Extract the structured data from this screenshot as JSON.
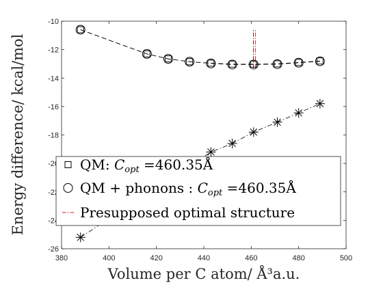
{
  "chart_data": {
    "type": "scatter",
    "xlabel": "Volume per C atom/ Å³a.u.",
    "ylabel": "Energy difference/ kcal/mol",
    "xlim": [
      380,
      500
    ],
    "ylim": [
      -26,
      -10
    ],
    "xticks": [
      "380",
      "400",
      "420",
      "440",
      "460",
      "480",
      "500"
    ],
    "yticks": [
      "-26",
      "-24",
      "-22",
      "-20",
      "-18",
      "-16",
      "-14",
      "-12",
      "-10"
    ],
    "grid": false,
    "legend_position": "bottom-left",
    "series": [
      {
        "name": "QM: C_opt =460.35Å",
        "marker": "square",
        "line": "dashed",
        "x": [
          388,
          416,
          425,
          434,
          443,
          452,
          461,
          471,
          480,
          489
        ],
        "y": [
          -10.6,
          -12.3,
          -12.65,
          -12.85,
          -12.95,
          -13.02,
          -13.02,
          -13.0,
          -12.9,
          -12.8
        ]
      },
      {
        "name": "QM + phonons : C_opt =460.35Å",
        "marker": "circle",
        "line": "dashed",
        "x": [
          388,
          416,
          425,
          434,
          443,
          452,
          461,
          471,
          480,
          489
        ],
        "y": [
          -10.6,
          -12.3,
          -12.65,
          -12.85,
          -12.97,
          -13.05,
          -13.05,
          -13.02,
          -12.92,
          -12.82
        ]
      },
      {
        "name": "",
        "marker": "asterisk",
        "line": "dashdot",
        "x": [
          388,
          443,
          452,
          461,
          471,
          480,
          489
        ],
        "y": [
          -25.2,
          -19.2,
          -18.6,
          -17.8,
          -17.1,
          -16.45,
          -15.8
        ]
      }
    ],
    "reference_line": {
      "name": "Presupposed optimal structure",
      "x": 461.5,
      "y_range": [
        -13.3,
        -10.6
      ],
      "color": "#d62728"
    }
  },
  "legend": {
    "items": [
      {
        "prefix": "QM: ",
        "math": "C",
        "sub": "opt",
        "suffix": " =460.35Å"
      },
      {
        "prefix": "QM + phonons : ",
        "math": "C",
        "sub": "opt",
        "suffix": " =460.35Å"
      },
      {
        "prefix": "Presupposed optimal structure",
        "math": "",
        "sub": "",
        "suffix": ""
      }
    ]
  }
}
